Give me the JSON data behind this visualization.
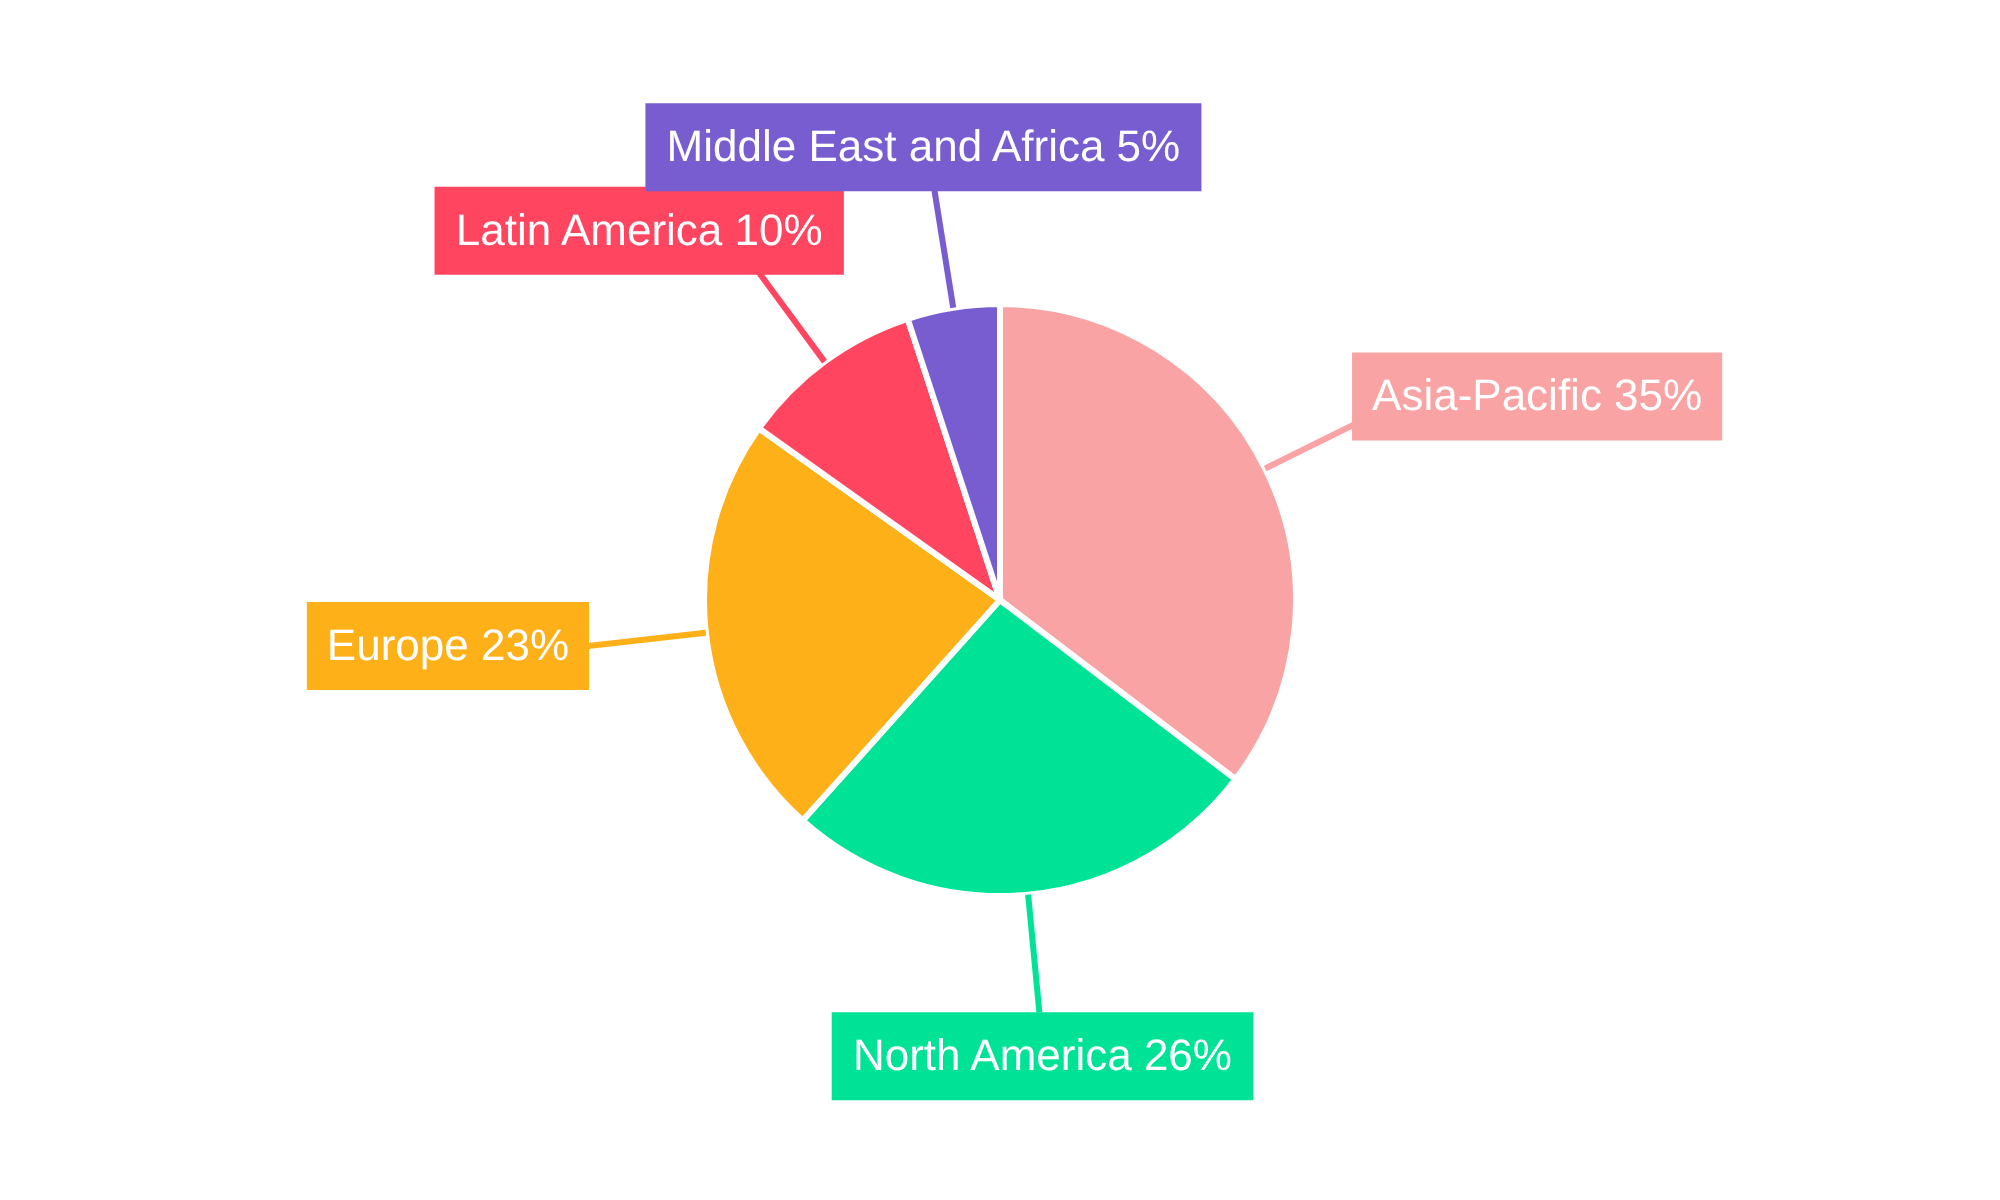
{
  "chart_data": {
    "type": "pie",
    "categories": [
      "Asia-Pacific",
      "North America",
      "Europe",
      "Latin America",
      "Middle East and Africa"
    ],
    "values": [
      35,
      26,
      23,
      10,
      5
    ],
    "value_labels": [
      "35%",
      "26%",
      "23%",
      "10%",
      "5%"
    ],
    "colors": [
      "#f9a3a4",
      "#00e396",
      "#feb019",
      "#ff4560",
      "#775dd0"
    ]
  }
}
